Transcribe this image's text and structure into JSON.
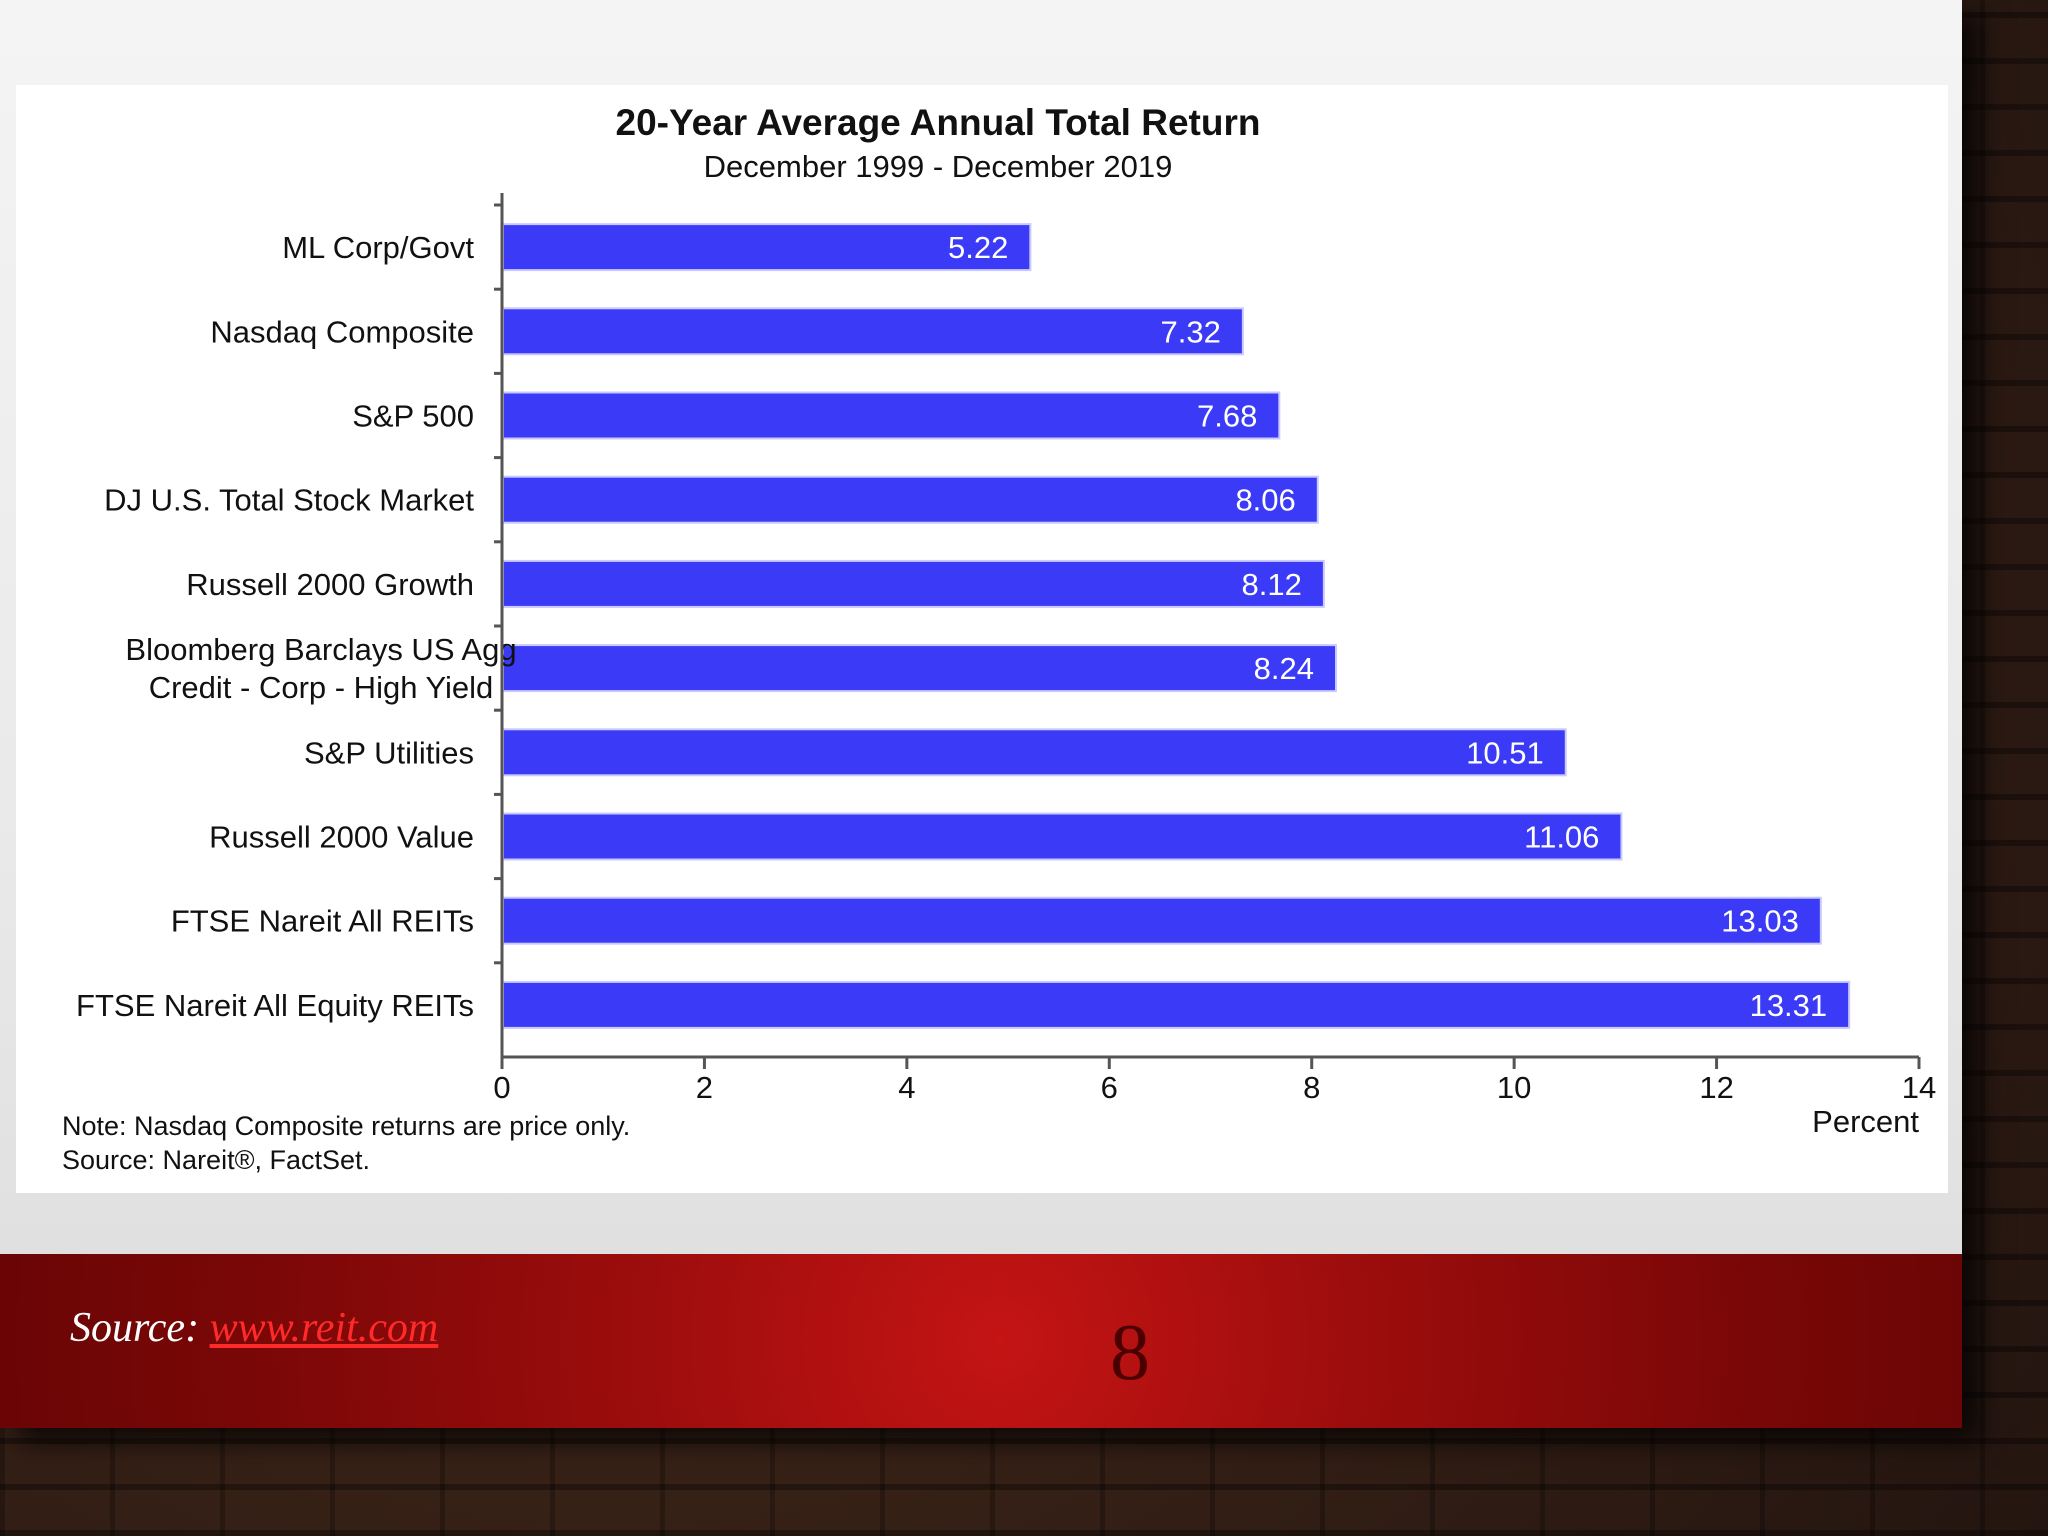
{
  "colors": {
    "bar": "#3b3bf7",
    "axis": "#555555",
    "label_inside": "#ffffff",
    "footer": "#9e0d0d",
    "link": "#ff2a2a"
  },
  "chart_data": {
    "type": "bar",
    "orientation": "horizontal",
    "title": "20-Year Average Annual Total Return",
    "subtitle": "December 1999 - December 2019",
    "xlabel": "Percent",
    "ylabel": "",
    "xlim": [
      0,
      14
    ],
    "xticks": [
      0,
      2,
      4,
      6,
      8,
      10,
      12,
      14
    ],
    "grid": false,
    "legend": "none",
    "categories": [
      [
        "ML Corp/Govt"
      ],
      [
        "Nasdaq Composite"
      ],
      [
        "S&P 500"
      ],
      [
        "DJ U.S. Total Stock Market"
      ],
      [
        "Russell 2000 Growth"
      ],
      [
        "Bloomberg Barclays US Agg",
        "Credit - Corp - High Yield"
      ],
      [
        "S&P Utilities"
      ],
      [
        "Russell 2000 Value"
      ],
      [
        "FTSE Nareit All REITs"
      ],
      [
        "FTSE Nareit All Equity REITs"
      ]
    ],
    "values": [
      5.22,
      7.32,
      7.68,
      8.06,
      8.12,
      8.24,
      10.51,
      11.06,
      13.03,
      13.31
    ],
    "value_labels": [
      "5.22",
      "7.32",
      "7.68",
      "8.06",
      "8.12",
      "8.24",
      "10.51",
      "11.06",
      "13.03",
      "13.31"
    ]
  },
  "notes": {
    "note": "Note: Nasdaq Composite returns are price only.",
    "source": "Source: Nareit®, FactSet."
  },
  "footer": {
    "source_prefix": "Source: ",
    "source_link": "www.reit.com",
    "page_number": "8"
  }
}
